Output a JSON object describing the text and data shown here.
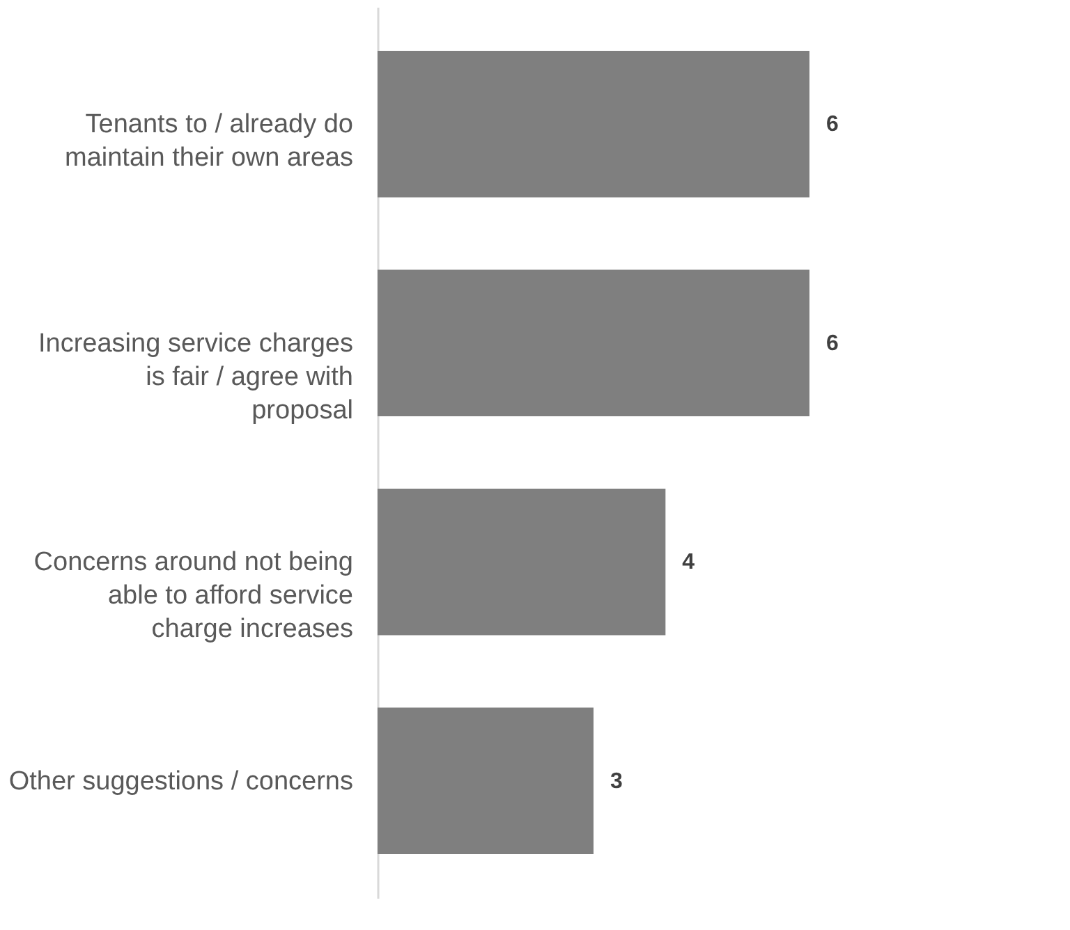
{
  "chart_data": {
    "type": "bar",
    "orientation": "horizontal",
    "categories": [
      "Tenants to / already do maintain their own areas",
      "Increasing service charges is fair / agree with proposal",
      "Concerns around not being able to afford service charge increases",
      "Other suggestions / concerns"
    ],
    "values": [
      6,
      6,
      4,
      3
    ],
    "color": "#7f7f7f",
    "data_labels": true,
    "tick_labels": "y"
  }
}
